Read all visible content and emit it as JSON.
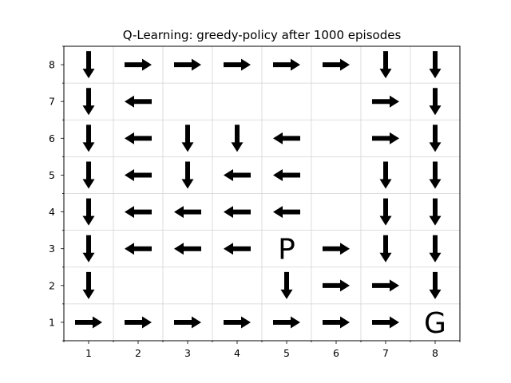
{
  "chart_data": {
    "type": "heatmap",
    "title": "Q-Learning: greedy-policy after 1000 episodes",
    "xlabel": "",
    "ylabel": "",
    "x_ticks": [
      "1",
      "2",
      "3",
      "4",
      "5",
      "6",
      "7",
      "8"
    ],
    "y_ticks": [
      "1",
      "2",
      "3",
      "4",
      "5",
      "6",
      "7",
      "8"
    ],
    "xlim": [
      0.5,
      8.5
    ],
    "ylim": [
      0.5,
      8.5
    ],
    "grid": true,
    "policy_rows": [
      {
        "y": 8,
        "actions": [
          "down",
          "right",
          "right",
          "right",
          "right",
          "right",
          "down",
          "down"
        ]
      },
      {
        "y": 7,
        "actions": [
          "down",
          "left",
          "",
          "",
          "",
          "",
          "right",
          "down"
        ]
      },
      {
        "y": 6,
        "actions": [
          "down",
          "left",
          "down",
          "down",
          "left",
          "",
          "right",
          "down"
        ]
      },
      {
        "y": 5,
        "actions": [
          "down",
          "left",
          "down",
          "left",
          "left",
          "",
          "down",
          "down"
        ]
      },
      {
        "y": 4,
        "actions": [
          "down",
          "left",
          "left",
          "left",
          "left",
          "",
          "down",
          "down"
        ]
      },
      {
        "y": 3,
        "actions": [
          "down",
          "left",
          "left",
          "left",
          "",
          "right",
          "down",
          "down"
        ]
      },
      {
        "y": 2,
        "actions": [
          "down",
          "",
          "",
          "",
          "down",
          "right",
          "right",
          "down"
        ]
      },
      {
        "y": 1,
        "actions": [
          "right",
          "right",
          "right",
          "right",
          "right",
          "right",
          "right",
          ""
        ]
      }
    ],
    "annotations": [
      {
        "x": 5,
        "y": 3,
        "text": "P"
      },
      {
        "x": 8,
        "y": 1,
        "text": "G"
      }
    ],
    "colors": {
      "arrow": "#000000",
      "grid": "#d3d3d3",
      "axes": "#000000"
    }
  }
}
